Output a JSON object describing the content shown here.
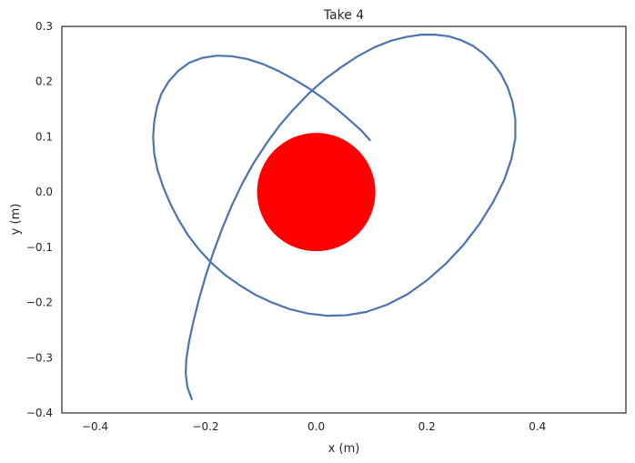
{
  "chart_data": {
    "type": "line",
    "title": "Take 4",
    "xlabel": "x (m)",
    "ylabel": "y (m)",
    "xlim": [
      -0.46,
      0.56
    ],
    "ylim": [
      -0.4,
      0.3
    ],
    "xticks": [
      -0.4,
      -0.2,
      0.0,
      0.2,
      0.4
    ],
    "yticks": [
      -0.4,
      -0.3,
      -0.2,
      -0.1,
      0.0,
      0.1,
      0.2,
      0.3
    ],
    "xtick_labels": [
      "−0.4",
      "−0.2",
      "0.0",
      "0.2",
      "0.4"
    ],
    "ytick_labels": [
      "−0.4",
      "−0.3",
      "−0.2",
      "−0.1",
      "0.0",
      "0.1",
      "0.2",
      "0.3"
    ],
    "grid": false,
    "series": [
      {
        "line_color": "#4c72b0",
        "x": [
          -0.225,
          -0.233,
          -0.236,
          -0.235,
          -0.23,
          -0.222,
          -0.212,
          -0.2,
          -0.186,
          -0.17,
          -0.153,
          -0.134,
          -0.113,
          -0.09,
          -0.066,
          -0.04,
          -0.013,
          0.015,
          0.045,
          0.075,
          0.105,
          0.135,
          0.163,
          0.19,
          0.215,
          0.24,
          0.262,
          0.283,
          0.302,
          0.319,
          0.334,
          0.346,
          0.355,
          0.36,
          0.36,
          0.353,
          0.34,
          0.32,
          0.295,
          0.266,
          0.234,
          0.2,
          0.165,
          0.128,
          0.091,
          0.055,
          0.02,
          -0.015,
          -0.048,
          -0.08,
          -0.11,
          -0.138,
          -0.165,
          -0.19,
          -0.212,
          -0.232,
          -0.249,
          -0.264,
          -0.277,
          -0.287,
          -0.293,
          -0.295,
          -0.293,
          -0.288,
          -0.28,
          -0.267,
          -0.25,
          -0.23,
          -0.206,
          -0.18,
          -0.153,
          -0.125,
          -0.097,
          -0.068,
          -0.04,
          -0.012,
          0.015,
          0.04,
          0.063,
          0.083,
          0.097
        ],
        "y": [
          -0.375,
          -0.353,
          -0.329,
          -0.303,
          -0.271,
          -0.234,
          -0.194,
          -0.152,
          -0.109,
          -0.066,
          -0.025,
          0.015,
          0.053,
          0.088,
          0.121,
          0.151,
          0.179,
          0.204,
          0.226,
          0.246,
          0.262,
          0.274,
          0.281,
          0.285,
          0.285,
          0.282,
          0.275,
          0.265,
          0.251,
          0.234,
          0.214,
          0.19,
          0.163,
          0.132,
          0.097,
          0.06,
          0.022,
          -0.018,
          -0.058,
          -0.096,
          -0.13,
          -0.16,
          -0.185,
          -0.204,
          -0.217,
          -0.223,
          -0.224,
          -0.22,
          -0.212,
          -0.2,
          -0.186,
          -0.169,
          -0.15,
          -0.128,
          -0.104,
          -0.078,
          -0.05,
          -0.021,
          0.01,
          0.04,
          0.07,
          0.099,
          0.127,
          0.154,
          0.178,
          0.2,
          0.219,
          0.234,
          0.243,
          0.247,
          0.246,
          0.241,
          0.232,
          0.219,
          0.204,
          0.187,
          0.168,
          0.148,
          0.128,
          0.11,
          0.094
        ]
      }
    ],
    "circle": {
      "cx": 0.0,
      "cy": 0.0,
      "r": 0.107,
      "color": "#ff0000"
    }
  }
}
